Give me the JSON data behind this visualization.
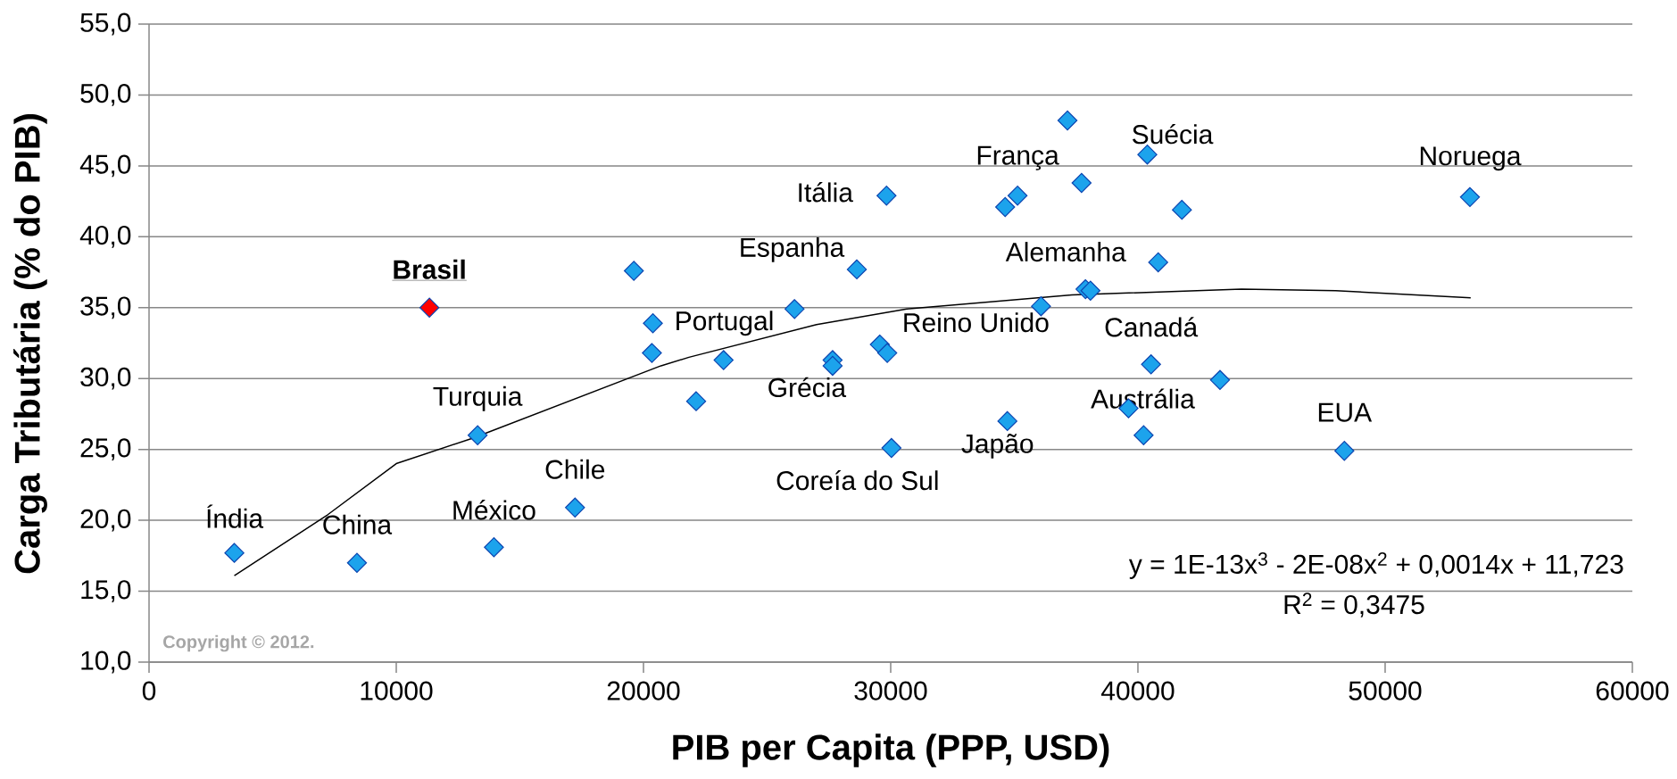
{
  "chart_data": {
    "type": "scatter",
    "xlabel": "PIB per Capita (PPP, USD)",
    "ylabel": "Carga Tributária (% do PIB)",
    "xlim": [
      0,
      60000
    ],
    "ylim": [
      10,
      55
    ],
    "xticks": [
      0,
      10000,
      20000,
      30000,
      40000,
      50000,
      60000
    ],
    "yticks": [
      {
        "value": 10,
        "label": "10,0"
      },
      {
        "value": 15,
        "label": "15,0"
      },
      {
        "value": 20,
        "label": "20,0"
      },
      {
        "value": 25,
        "label": "25,0"
      },
      {
        "value": 30,
        "label": "30,0"
      },
      {
        "value": 35,
        "label": "35,0"
      },
      {
        "value": 40,
        "label": "40,0"
      },
      {
        "value": 45,
        "label": "45,0"
      },
      {
        "value": 50,
        "label": "50,0"
      },
      {
        "value": 55,
        "label": "55,0"
      }
    ],
    "grid": "y",
    "marker": "diamond",
    "series": [
      {
        "color": "#1ca3ec",
        "x": [
          3450,
          8410,
          13290,
          13950,
          17230,
          20340,
          19610,
          20380,
          29830,
          28630,
          37150,
          40380,
          37720,
          35130,
          34630,
          26110,
          36080,
          37880,
          38080,
          40820,
          29560,
          29860,
          23240,
          27650,
          27650,
          22130,
          34720,
          30030,
          39620,
          40230,
          40530,
          43320,
          48350,
          53430,
          41780
        ],
        "values": [
          17.7,
          17.0,
          26.0,
          18.1,
          20.9,
          31.8,
          37.6,
          33.9,
          42.9,
          37.7,
          48.2,
          45.8,
          43.8,
          42.9,
          42.1,
          34.9,
          35.1,
          36.3,
          36.2,
          38.2,
          32.4,
          31.8,
          31.3,
          31.3,
          30.9,
          28.4,
          27.0,
          25.1,
          27.9,
          26.0,
          31.0,
          29.9,
          24.9,
          42.8,
          41.9
        ]
      },
      {
        "name": "Brasil",
        "color": "#ff0000",
        "x": [
          11340
        ],
        "values": [
          35.0
        ]
      },
      {
        "type": "line",
        "marker": "none",
        "color": "#000000",
        "x": [
          3450,
          7230,
          10000,
          13100,
          20710,
          21840,
          27000,
          30650,
          37330,
          44190,
          48000,
          53460
        ],
        "values": [
          16.1,
          20.4,
          24.0,
          25.8,
          30.9,
          31.5,
          33.8,
          34.9,
          35.9,
          36.3,
          36.2,
          35.7
        ]
      }
    ],
    "annotations": [
      {
        "text": "Índia",
        "x": 3450,
        "y": 17.7
      },
      {
        "text": "China",
        "x": 8410,
        "y": 17.0
      },
      {
        "text": "Turquia",
        "x": 13290,
        "y": 26.0
      },
      {
        "text": "México",
        "x": 13950,
        "y": 18.1
      },
      {
        "text": "Chile",
        "x": 17230,
        "y": 20.9
      },
      {
        "text": "Portugal",
        "x": 20380,
        "y": 33.9
      },
      {
        "text": "Espanha",
        "x": 28630,
        "y": 37.7
      },
      {
        "text": "Itália",
        "x": 29830,
        "y": 42.9
      },
      {
        "text": "França",
        "x": 35130,
        "y": 42.9
      },
      {
        "text": "Suécia",
        "x": 40380,
        "y": 45.8
      },
      {
        "text": "Noruega",
        "x": 53430,
        "y": 42.8
      },
      {
        "text": "Alemanha",
        "x": 37880,
        "y": 36.3
      },
      {
        "text": "Reino Unido",
        "x": 36080,
        "y": 35.1
      },
      {
        "text": "Canadá",
        "x": 40530,
        "y": 31.0
      },
      {
        "text": "Grécia",
        "x": 27650,
        "y": 30.9
      },
      {
        "text": "Coreía do Sul",
        "x": 30030,
        "y": 25.1
      },
      {
        "text": "Japão",
        "x": 34720,
        "y": 27.0
      },
      {
        "text": "Austrália",
        "x": 39620,
        "y": 27.9
      },
      {
        "text": "EUA",
        "x": 48350,
        "y": 24.9
      },
      "y = 1E-13x$^{3}$ - 2E-08x$^{2}$ + 0,0014x + 11,723",
      "R$^{2}$ = 0,3475",
      "Copyright © 2012."
    ]
  }
}
